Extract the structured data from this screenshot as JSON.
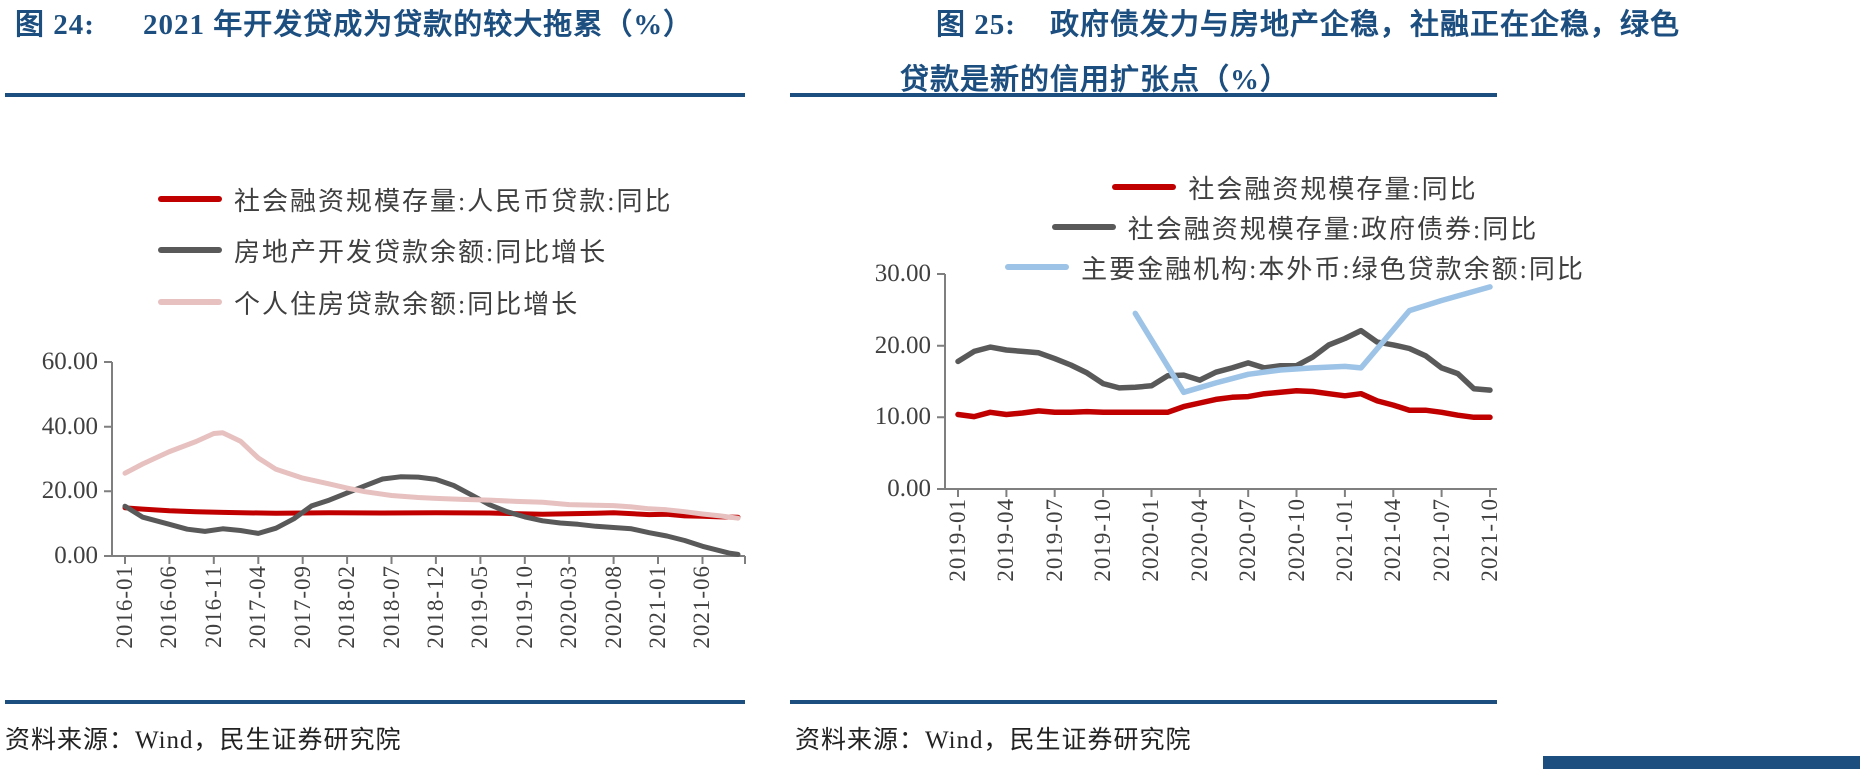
{
  "page": {
    "accent_color": "#1C4E80",
    "axis_color": "#7f7f7f"
  },
  "chart_data": [
    {
      "type": "line",
      "fig_label": "图 24:",
      "title": "2021 年开发贷成为贷款的较大拖累（%）",
      "source": "资料来源：Wind，民生证券研究院",
      "grid": false,
      "legend_position": "top-left",
      "x_start": "2016-01",
      "x_end": "2021-10",
      "ylim": [
        0,
        60
      ],
      "y_tick_labels": [
        "0.00",
        "20.00",
        "40.00",
        "60.00"
      ],
      "x_tick_labels": [
        "2016-01",
        "2016-06",
        "2016-11",
        "2017-04",
        "2017-09",
        "2018-02",
        "2018-07",
        "2018-12",
        "2019-05",
        "2019-10",
        "2020-03",
        "2020-08",
        "2021-01",
        "2021-06"
      ],
      "series": [
        {
          "name": "社会融资规模存量:人民币贷款:同比",
          "color": "#C00000",
          "points": [
            [
              "2016-01",
              14.9
            ],
            [
              "2016-03",
              14.5
            ],
            [
              "2016-06",
              14.0
            ],
            [
              "2016-09",
              13.7
            ],
            [
              "2016-12",
              13.5
            ],
            [
              "2017-06",
              13.2
            ],
            [
              "2017-12",
              13.4
            ],
            [
              "2018-06",
              13.3
            ],
            [
              "2018-12",
              13.4
            ],
            [
              "2019-06",
              13.3
            ],
            [
              "2019-12",
              12.9
            ],
            [
              "2020-06",
              13.2
            ],
            [
              "2020-08",
              13.4
            ],
            [
              "2020-12",
              12.8
            ],
            [
              "2021-02",
              12.9
            ],
            [
              "2021-04",
              12.4
            ],
            [
              "2021-06",
              12.3
            ],
            [
              "2021-08",
              12.1
            ],
            [
              "2021-10",
              12.0
            ]
          ]
        },
        {
          "name": "房地产开发贷款余额:同比增长",
          "color": "#595959",
          "points": [
            [
              "2016-01",
              15.4
            ],
            [
              "2016-03",
              12.0
            ],
            [
              "2016-06",
              9.8
            ],
            [
              "2016-08",
              8.3
            ],
            [
              "2016-10",
              7.6
            ],
            [
              "2016-12",
              8.4
            ],
            [
              "2017-02",
              7.9
            ],
            [
              "2017-04",
              7.0
            ],
            [
              "2017-06",
              8.6
            ],
            [
              "2017-08",
              11.5
            ],
            [
              "2017-10",
              15.5
            ],
            [
              "2017-12",
              17.3
            ],
            [
              "2018-02",
              19.5
            ],
            [
              "2018-04",
              21.7
            ],
            [
              "2018-06",
              23.8
            ],
            [
              "2018-08",
              24.5
            ],
            [
              "2018-10",
              24.4
            ],
            [
              "2018-12",
              23.7
            ],
            [
              "2019-02",
              21.8
            ],
            [
              "2019-04",
              18.9
            ],
            [
              "2019-06",
              15.9
            ],
            [
              "2019-08",
              13.7
            ],
            [
              "2019-10",
              12.1
            ],
            [
              "2019-12",
              10.9
            ],
            [
              "2020-02",
              10.2
            ],
            [
              "2020-04",
              9.8
            ],
            [
              "2020-06",
              9.2
            ],
            [
              "2020-08",
              8.8
            ],
            [
              "2020-10",
              8.4
            ],
            [
              "2020-12",
              7.2
            ],
            [
              "2021-02",
              6.2
            ],
            [
              "2021-04",
              4.8
            ],
            [
              "2021-06",
              3.0
            ],
            [
              "2021-08",
              1.6
            ],
            [
              "2021-09",
              0.9
            ],
            [
              "2021-10",
              0.5
            ]
          ]
        },
        {
          "name": "个人住房贷款余额:同比增长",
          "color": "#E7C0C0",
          "points": [
            [
              "2016-01",
              25.6
            ],
            [
              "2016-03",
              28.5
            ],
            [
              "2016-06",
              32.3
            ],
            [
              "2016-09",
              35.4
            ],
            [
              "2016-11",
              37.9
            ],
            [
              "2016-12",
              38.1
            ],
            [
              "2017-02",
              35.5
            ],
            [
              "2017-04",
              30.3
            ],
            [
              "2017-06",
              26.8
            ],
            [
              "2017-09",
              24.1
            ],
            [
              "2017-12",
              22.3
            ],
            [
              "2018-02",
              21.0
            ],
            [
              "2018-04",
              19.9
            ],
            [
              "2018-07",
              18.7
            ],
            [
              "2018-10",
              18.1
            ],
            [
              "2018-12",
              17.8
            ],
            [
              "2019-03",
              17.5
            ],
            [
              "2019-06",
              17.3
            ],
            [
              "2019-09",
              16.9
            ],
            [
              "2019-12",
              16.6
            ],
            [
              "2020-03",
              15.9
            ],
            [
              "2020-06",
              15.7
            ],
            [
              "2020-08",
              15.6
            ],
            [
              "2020-10",
              15.2
            ],
            [
              "2020-12",
              14.6
            ],
            [
              "2021-02",
              14.3
            ],
            [
              "2021-04",
              13.7
            ],
            [
              "2021-06",
              13.0
            ],
            [
              "2021-08",
              12.4
            ],
            [
              "2021-10",
              11.7
            ]
          ]
        }
      ]
    },
    {
      "type": "line",
      "fig_label": "图 25:",
      "title_line1": "政府债发力与房地产企稳，社融正在企稳，绿色",
      "title_line2": "贷款是新的信用扩张点（%）",
      "source": "资料来源：Wind，民生证券研究院",
      "grid": false,
      "legend_position": "top-center",
      "x_start": "2019-01",
      "x_end": "2021-10",
      "ylim": [
        0,
        30
      ],
      "y_tick_labels": [
        "0.00",
        "10.00",
        "20.00",
        "30.00"
      ],
      "x_tick_labels": [
        "2019-01",
        "2019-04",
        "2019-07",
        "2019-10",
        "2020-01",
        "2020-04",
        "2020-07",
        "2020-10",
        "2021-01",
        "2021-04",
        "2021-07",
        "2021-10"
      ],
      "series": [
        {
          "name": "社会融资规模存量:同比",
          "color": "#C00000",
          "points": [
            [
              "2019-01",
              10.4
            ],
            [
              "2019-02",
              10.1
            ],
            [
              "2019-03",
              10.7
            ],
            [
              "2019-04",
              10.4
            ],
            [
              "2019-05",
              10.6
            ],
            [
              "2019-06",
              10.9
            ],
            [
              "2019-07",
              10.7
            ],
            [
              "2019-08",
              10.7
            ],
            [
              "2019-09",
              10.8
            ],
            [
              "2019-10",
              10.7
            ],
            [
              "2019-11",
              10.7
            ],
            [
              "2019-12",
              10.7
            ],
            [
              "2020-01",
              10.7
            ],
            [
              "2020-02",
              10.7
            ],
            [
              "2020-03",
              11.5
            ],
            [
              "2020-04",
              12.0
            ],
            [
              "2020-05",
              12.5
            ],
            [
              "2020-06",
              12.8
            ],
            [
              "2020-07",
              12.9
            ],
            [
              "2020-08",
              13.3
            ],
            [
              "2020-09",
              13.5
            ],
            [
              "2020-10",
              13.7
            ],
            [
              "2020-11",
              13.6
            ],
            [
              "2020-12",
              13.3
            ],
            [
              "2021-01",
              13.0
            ],
            [
              "2021-02",
              13.3
            ],
            [
              "2021-03",
              12.3
            ],
            [
              "2021-04",
              11.7
            ],
            [
              "2021-05",
              11.0
            ],
            [
              "2021-06",
              11.0
            ],
            [
              "2021-07",
              10.7
            ],
            [
              "2021-08",
              10.3
            ],
            [
              "2021-09",
              10.0
            ],
            [
              "2021-10",
              10.0
            ]
          ]
        },
        {
          "name": "社会融资规模存量:政府债券:同比",
          "color": "#595959",
          "points": [
            [
              "2019-01",
              17.8
            ],
            [
              "2019-02",
              19.2
            ],
            [
              "2019-03",
              19.8
            ],
            [
              "2019-04",
              19.4
            ],
            [
              "2019-05",
              19.2
            ],
            [
              "2019-06",
              19.0
            ],
            [
              "2019-07",
              18.2
            ],
            [
              "2019-08",
              17.3
            ],
            [
              "2019-09",
              16.2
            ],
            [
              "2019-10",
              14.7
            ],
            [
              "2019-11",
              14.1
            ],
            [
              "2019-12",
              14.2
            ],
            [
              "2020-01",
              14.4
            ],
            [
              "2020-02",
              15.8
            ],
            [
              "2020-03",
              15.9
            ],
            [
              "2020-04",
              15.2
            ],
            [
              "2020-05",
              16.3
            ],
            [
              "2020-06",
              16.9
            ],
            [
              "2020-07",
              17.6
            ],
            [
              "2020-08",
              16.9
            ],
            [
              "2020-09",
              17.2
            ],
            [
              "2020-10",
              17.2
            ],
            [
              "2020-11",
              18.4
            ],
            [
              "2020-12",
              20.1
            ],
            [
              "2021-01",
              21.0
            ],
            [
              "2021-02",
              22.1
            ],
            [
              "2021-03",
              20.5
            ],
            [
              "2021-04",
              20.1
            ],
            [
              "2021-05",
              19.6
            ],
            [
              "2021-06",
              18.6
            ],
            [
              "2021-07",
              16.9
            ],
            [
              "2021-08",
              16.1
            ],
            [
              "2021-09",
              14.0
            ],
            [
              "2021-10",
              13.8
            ]
          ]
        },
        {
          "name": "主要金融机构:本外币:绿色贷款余额:同比",
          "color": "#9DC3E6",
          "points": [
            [
              "2019-12",
              24.5
            ],
            [
              "2020-03",
              13.5
            ],
            [
              "2020-05",
              14.8
            ],
            [
              "2020-07",
              16.0
            ],
            [
              "2020-09",
              16.6
            ],
            [
              "2020-11",
              16.9
            ],
            [
              "2021-01",
              17.1
            ],
            [
              "2021-02",
              16.9
            ],
            [
              "2021-05",
              24.9
            ],
            [
              "2021-07",
              26.3
            ],
            [
              "2021-10",
              28.2
            ]
          ]
        }
      ]
    }
  ]
}
